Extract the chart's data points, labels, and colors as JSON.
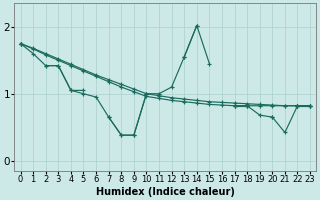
{
  "title": "",
  "xlabel": "Humidex (Indice chaleur)",
  "xlim": [
    -0.5,
    23.5
  ],
  "ylim": [
    -0.15,
    2.35
  ],
  "xticks": [
    0,
    1,
    2,
    3,
    4,
    5,
    6,
    7,
    8,
    9,
    10,
    11,
    12,
    13,
    14,
    15,
    16,
    17,
    18,
    19,
    20,
    21,
    22,
    23
  ],
  "yticks": [
    0,
    1,
    2
  ],
  "bg_color": "#cce9e7",
  "grid_color": "#aacfcd",
  "line_color": "#1a6b5e",
  "line_color2": "#2a8070",
  "series1": [
    1.75,
    1.6,
    null,
    null,
    1.05,
    1.05,
    null,
    null,
    0.38,
    0.38,
    1.0,
    null,
    null,
    1.55,
    2.02,
    1.45,
    null,
    null,
    null,
    null,
    null,
    0.42,
    null,
    null
  ],
  "series2": [
    1.75,
    null,
    1.42,
    1.42,
    1.05,
    1.0,
    null,
    0.65,
    0.38,
    0.38,
    1.0,
    1.0,
    1.1,
    1.55,
    2.02,
    null,
    null,
    null,
    null,
    null,
    0.65,
    0.42,
    0.82,
    0.82
  ],
  "series3_x": [
    0,
    23
  ],
  "series3_y": [
    1.75,
    0.82
  ],
  "series4_x": [
    0,
    23
  ],
  "series4_y": [
    1.75,
    0.82
  ],
  "line1_full": [
    1.75,
    1.6,
    1.42,
    1.42,
    1.05,
    1.05,
    0.85,
    null,
    0.38,
    0.38,
    1.0,
    null,
    null,
    1.55,
    2.02,
    1.45,
    null,
    0.82,
    0.82,
    null,
    0.65,
    0.42,
    0.82,
    0.82
  ],
  "line2_full": [
    1.75,
    null,
    1.42,
    1.42,
    1.05,
    1.0,
    0.95,
    0.65,
    0.38,
    0.38,
    1.0,
    1.0,
    1.1,
    1.55,
    2.02,
    null,
    null,
    0.82,
    0.82,
    0.68,
    0.65,
    null,
    0.82,
    0.82
  ],
  "straight1": [
    1.75,
    1.67,
    1.58,
    1.5,
    1.42,
    1.34,
    1.26,
    1.18,
    1.1,
    1.03,
    0.96,
    0.93,
    0.9,
    0.88,
    0.86,
    0.84,
    0.83,
    0.82,
    0.82,
    0.82,
    0.82,
    0.82,
    0.82,
    0.82
  ],
  "straight2": [
    1.75,
    1.68,
    1.6,
    1.52,
    1.44,
    1.36,
    1.28,
    1.21,
    1.14,
    1.07,
    1.0,
    0.97,
    0.94,
    0.92,
    0.9,
    0.88,
    0.87,
    0.86,
    0.85,
    0.84,
    0.83,
    0.82,
    0.82,
    0.82
  ]
}
